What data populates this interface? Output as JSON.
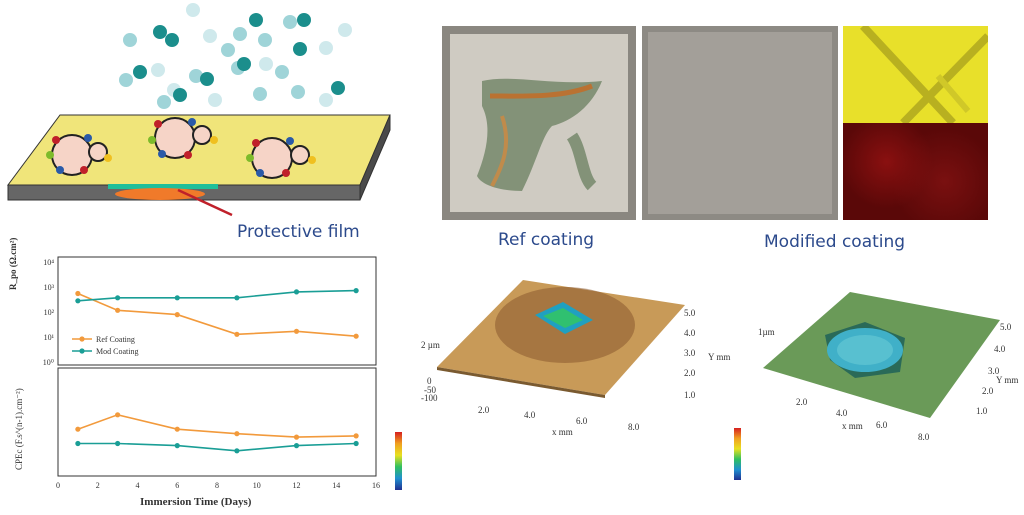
{
  "labels": {
    "protective_film": "Protective film",
    "ref_coating": "Ref coating",
    "modified_coating": "Modified coating"
  },
  "colors": {
    "ref": "#f29a3c",
    "mod": "#1a9e96",
    "substrate_top": "#f0e57a",
    "film_green": "#1fbf9a",
    "film_orange": "#f07a2a",
    "eds_yellow": "#e8e02a",
    "eds_red": "#8a1010"
  },
  "chart_data": [
    {
      "type": "line",
      "ylabel": "R_po (Ω.cm²)",
      "yscale": "log",
      "ylim": [
        10,
        100000
      ],
      "yticks": [
        "10⁴",
        "10³",
        "10²",
        "10¹",
        "10⁰"
      ],
      "x": [
        1,
        3,
        6,
        9,
        12,
        15
      ],
      "series": [
        {
          "name": "Ref Coating",
          "values": [
            3000,
            600,
            400,
            60,
            80,
            50
          ]
        },
        {
          "name": "Mod Coating",
          "values": [
            1500,
            2000,
            2000,
            2000,
            3500,
            4000
          ]
        }
      ],
      "legend": "bottom-left"
    },
    {
      "type": "line",
      "ylabel": "CPEc (F.s^(n-1).cm⁻²)",
      "yscale": "log",
      "xlabel": "Immersion Time (Days)",
      "xticks": [
        "0",
        "2",
        "4",
        "6",
        "8",
        "10",
        "12",
        "14",
        "16"
      ],
      "xlim": [
        0,
        16
      ],
      "x": [
        1,
        3,
        6,
        9,
        12,
        15
      ],
      "series": [
        {
          "name": "Ref Coating",
          "values": [
            2e-07,
            5e-07,
            2e-07,
            1.5e-07,
            1.2e-07,
            1.3e-07
          ]
        },
        {
          "name": "Mod Coating",
          "values": [
            8e-08,
            8e-08,
            7e-08,
            5e-08,
            7e-08,
            8e-08
          ]
        }
      ]
    }
  ],
  "topo1": {
    "z_label": "2 µm",
    "x_axis": "x mm",
    "y_axis": "Y mm",
    "y_ticks": [
      "5.0",
      "4.0",
      "3.0",
      "2.0",
      "1.0"
    ],
    "x_ticks": [
      "2.0",
      "4.0",
      "6.0",
      "8.0"
    ],
    "z_ticks": [
      "0",
      "-50",
      "-100"
    ]
  },
  "topo2": {
    "z_label": "1µm",
    "x_axis": "x mm",
    "y_axis": "Y mm",
    "y_ticks": [
      "5.0",
      "4.0",
      "3.0",
      "2.0",
      "1.0"
    ],
    "x_ticks": [
      "2.0",
      "4.0",
      "6.0",
      "8.0"
    ]
  }
}
